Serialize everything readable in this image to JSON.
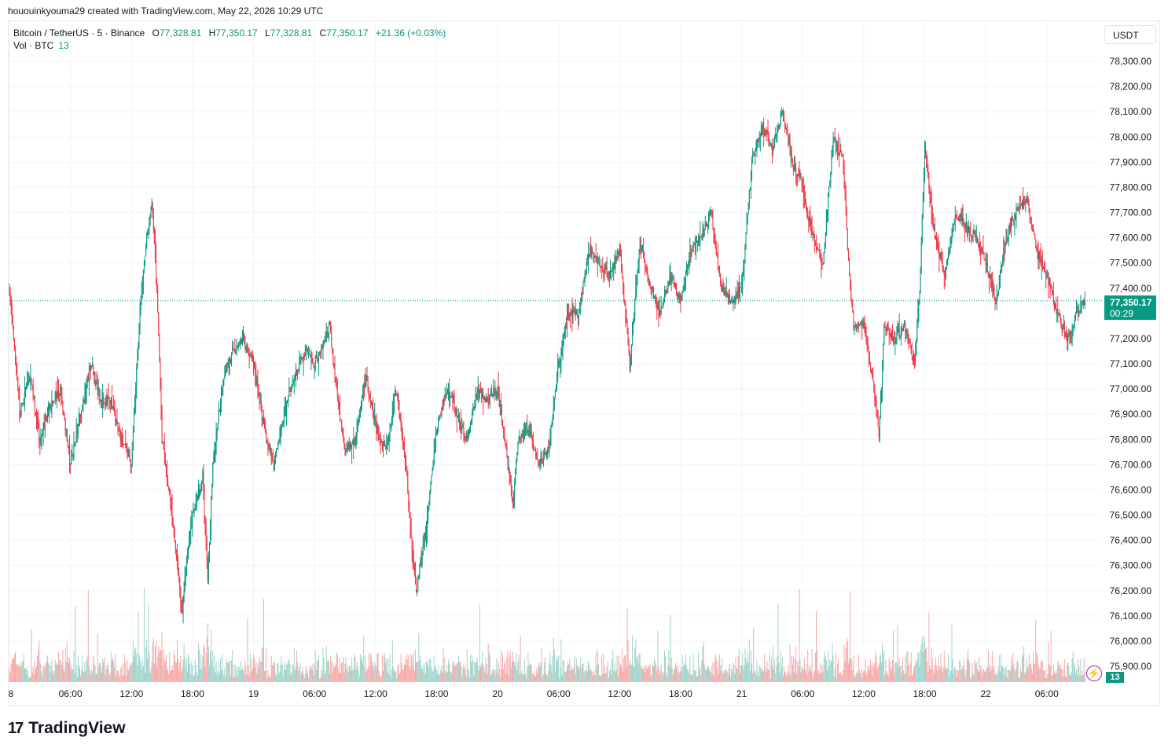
{
  "header": {
    "created_by": "hououinkyouma29 created with TradingView.com, May 22, 2026 10:29 UTC"
  },
  "legend": {
    "symbol": "Bitcoin / TetherUS · 5 · Binance",
    "o_label": "O",
    "o": "77,328.81",
    "h_label": "H",
    "h": "77,350.17",
    "l_label": "L",
    "l": "77,328.81",
    "c_label": "C",
    "c": "77,350.17",
    "change": "+21.36 (+0.03%)",
    "vol_label": "Vol · BTC",
    "vol_value": "13"
  },
  "currency": "USDT",
  "last_price": {
    "value": "77,350.17",
    "countdown": "00:29"
  },
  "volume_tag": "13",
  "logo": {
    "mark": "17",
    "text": "TradingView"
  },
  "colors": {
    "up": "#089981",
    "down": "#f23645",
    "vol_up": "#9fd4cb",
    "vol_down": "#f7a9a7"
  },
  "chart_data": {
    "type": "candlestick",
    "interval": "5",
    "y_ticks": [
      "78,300.00",
      "78,200.00",
      "78,100.00",
      "78,000.00",
      "77,900.00",
      "77,800.00",
      "77,700.00",
      "77,600.00",
      "77,500.00",
      "77,400.00",
      "77,200.00",
      "77,100.00",
      "77,000.00",
      "76,900.00",
      "76,800.00",
      "76,700.00",
      "76,600.00",
      "76,500.00",
      "76,400.00",
      "76,300.00",
      "76,200.00",
      "76,100.00",
      "76,000.00",
      "75,900.00"
    ],
    "x_ticks": [
      "8",
      "06:00",
      "12:00",
      "18:00",
      "19",
      "06:00",
      "12:00",
      "18:00",
      "20",
      "06:00",
      "12:00",
      "18:00",
      "21",
      "06:00",
      "12:00",
      "18:00",
      "22",
      "06:00"
    ],
    "ylim": [
      75850,
      78350
    ],
    "x_tick_hours": [
      0,
      6,
      12,
      18,
      24,
      30,
      36,
      42,
      48,
      54,
      60,
      66,
      72,
      78,
      84,
      90,
      96,
      102
    ],
    "x_range_hours": [
      0,
      106.5
    ],
    "price_path": [
      [
        0,
        77400
      ],
      [
        1,
        76900
      ],
      [
        2,
        77050
      ],
      [
        3,
        76800
      ],
      [
        4,
        76950
      ],
      [
        5,
        77000
      ],
      [
        6,
        76700
      ],
      [
        7,
        76900
      ],
      [
        8,
        77100
      ],
      [
        9,
        76950
      ],
      [
        10,
        76950
      ],
      [
        11,
        76800
      ],
      [
        12,
        76700
      ],
      [
        12.8,
        77300
      ],
      [
        13.5,
        77600
      ],
      [
        14,
        77750
      ],
      [
        14.6,
        77300
      ],
      [
        15,
        76800
      ],
      [
        16,
        76500
      ],
      [
        17,
        76100
      ],
      [
        17.5,
        76350
      ],
      [
        18,
        76500
      ],
      [
        19,
        76650
      ],
      [
        19.5,
        76250
      ],
      [
        20,
        76700
      ],
      [
        21,
        77050
      ],
      [
        22,
        77150
      ],
      [
        23,
        77200
      ],
      [
        24,
        77100
      ],
      [
        25,
        76850
      ],
      [
        26,
        76700
      ],
      [
        27,
        76900
      ],
      [
        28,
        77050
      ],
      [
        29,
        77150
      ],
      [
        30,
        77100
      ],
      [
        31,
        77200
      ],
      [
        31.5,
        77250
      ],
      [
        32,
        77050
      ],
      [
        33,
        76750
      ],
      [
        34,
        76800
      ],
      [
        35,
        77050
      ],
      [
        36,
        76850
      ],
      [
        37,
        76750
      ],
      [
        38,
        77000
      ],
      [
        39,
        76700
      ],
      [
        39.5,
        76400
      ],
      [
        40,
        76200
      ],
      [
        41,
        76450
      ],
      [
        42,
        76850
      ],
      [
        43,
        77000
      ],
      [
        44,
        76900
      ],
      [
        45,
        76800
      ],
      [
        46,
        77000
      ],
      [
        47,
        76950
      ],
      [
        48,
        77000
      ],
      [
        49,
        76700
      ],
      [
        49.5,
        76550
      ],
      [
        50,
        76800
      ],
      [
        51,
        76850
      ],
      [
        52,
        76700
      ],
      [
        53,
        76750
      ],
      [
        54,
        77100
      ],
      [
        55,
        77300
      ],
      [
        56,
        77300
      ],
      [
        57,
        77550
      ],
      [
        58,
        77500
      ],
      [
        59,
        77450
      ],
      [
        60,
        77550
      ],
      [
        61,
        77100
      ],
      [
        62,
        77600
      ],
      [
        63,
        77400
      ],
      [
        64,
        77300
      ],
      [
        65,
        77450
      ],
      [
        66,
        77350
      ],
      [
        67,
        77550
      ],
      [
        68,
        77600
      ],
      [
        69,
        77700
      ],
      [
        70,
        77400
      ],
      [
        71,
        77350
      ],
      [
        72,
        77400
      ],
      [
        72.5,
        77650
      ],
      [
        73,
        77900
      ],
      [
        74,
        78050
      ],
      [
        75,
        77950
      ],
      [
        76,
        78100
      ],
      [
        77,
        77900
      ],
      [
        78,
        77800
      ],
      [
        79,
        77600
      ],
      [
        80,
        77500
      ],
      [
        81,
        78000
      ],
      [
        82,
        77900
      ],
      [
        82.5,
        77500
      ],
      [
        83,
        77250
      ],
      [
        84,
        77250
      ],
      [
        85,
        77000
      ],
      [
        85.5,
        76800
      ],
      [
        86,
        77250
      ],
      [
        87,
        77200
      ],
      [
        88,
        77250
      ],
      [
        89,
        77100
      ],
      [
        89.5,
        77400
      ],
      [
        90,
        77950
      ],
      [
        91,
        77600
      ],
      [
        92,
        77450
      ],
      [
        93,
        77700
      ],
      [
        94,
        77650
      ],
      [
        95,
        77600
      ],
      [
        96,
        77500
      ],
      [
        97,
        77350
      ],
      [
        98,
        77600
      ],
      [
        99,
        77700
      ],
      [
        100,
        77750
      ],
      [
        100.5,
        77650
      ],
      [
        101,
        77550
      ],
      [
        102,
        77450
      ],
      [
        103,
        77300
      ],
      [
        104,
        77200
      ],
      [
        105,
        77300
      ],
      [
        105.8,
        77350
      ]
    ],
    "last_value": 77350.17
  }
}
